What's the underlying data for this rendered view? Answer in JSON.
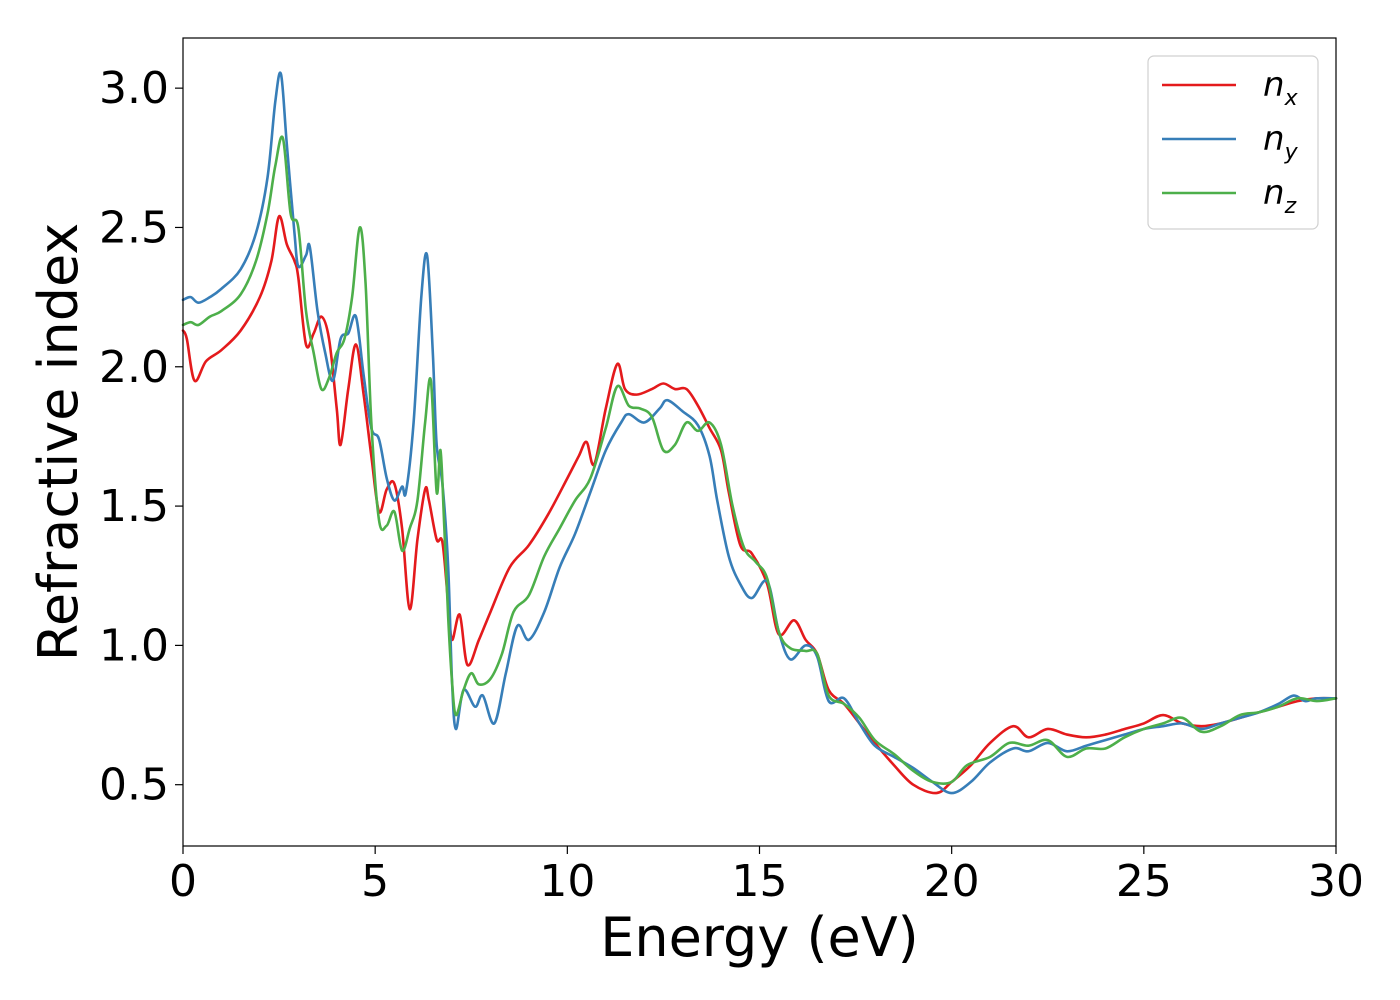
{
  "chart_data": {
    "type": "line",
    "title": "",
    "xlabel": "Energy (eV)",
    "ylabel": "Refractive index",
    "xlim": [
      0,
      30
    ],
    "ylim": [
      0.28,
      3.18
    ],
    "xticks": [
      0,
      5,
      10,
      15,
      20,
      25,
      30
    ],
    "xtick_labels": [
      "0",
      "5",
      "10",
      "15",
      "20",
      "25",
      "30"
    ],
    "yticks": [
      0.5,
      1.0,
      1.5,
      2.0,
      2.5,
      3.0
    ],
    "ytick_labels": [
      "0.5",
      "1.0",
      "1.5",
      "2.0",
      "2.5",
      "3.0"
    ],
    "grid": false,
    "legend_position": "top-right",
    "series": [
      {
        "name": "n_x",
        "label_main": "n",
        "label_sub": "x",
        "color": "#e41a1c",
        "points": [
          [
            0,
            2.13
          ],
          [
            0.1,
            2.1
          ],
          [
            0.3,
            1.95
          ],
          [
            0.6,
            2.02
          ],
          [
            1.0,
            2.06
          ],
          [
            1.5,
            2.13
          ],
          [
            2.0,
            2.25
          ],
          [
            2.3,
            2.38
          ],
          [
            2.5,
            2.54
          ],
          [
            2.7,
            2.44
          ],
          [
            2.9,
            2.38
          ],
          [
            3.0,
            2.32
          ],
          [
            3.2,
            2.08
          ],
          [
            3.4,
            2.12
          ],
          [
            3.6,
            2.18
          ],
          [
            3.8,
            2.1
          ],
          [
            4.0,
            1.85
          ],
          [
            4.1,
            1.72
          ],
          [
            4.3,
            1.92
          ],
          [
            4.5,
            2.08
          ],
          [
            4.7,
            1.9
          ],
          [
            4.9,
            1.68
          ],
          [
            5.1,
            1.48
          ],
          [
            5.3,
            1.56
          ],
          [
            5.5,
            1.58
          ],
          [
            5.7,
            1.42
          ],
          [
            5.9,
            1.13
          ],
          [
            6.1,
            1.38
          ],
          [
            6.3,
            1.56
          ],
          [
            6.4,
            1.52
          ],
          [
            6.6,
            1.38
          ],
          [
            6.75,
            1.37
          ],
          [
            6.9,
            1.15
          ],
          [
            7.0,
            1.02
          ],
          [
            7.2,
            1.11
          ],
          [
            7.4,
            0.93
          ],
          [
            7.7,
            1.02
          ],
          [
            8.0,
            1.12
          ],
          [
            8.5,
            1.28
          ],
          [
            9.0,
            1.36
          ],
          [
            9.5,
            1.47
          ],
          [
            10.0,
            1.6
          ],
          [
            10.3,
            1.68
          ],
          [
            10.5,
            1.73
          ],
          [
            10.7,
            1.65
          ],
          [
            11.0,
            1.85
          ],
          [
            11.3,
            2.01
          ],
          [
            11.5,
            1.92
          ],
          [
            11.8,
            1.9
          ],
          [
            12.2,
            1.92
          ],
          [
            12.5,
            1.94
          ],
          [
            12.8,
            1.92
          ],
          [
            13.1,
            1.92
          ],
          [
            13.4,
            1.86
          ],
          [
            13.7,
            1.78
          ],
          [
            14.0,
            1.7
          ],
          [
            14.2,
            1.55
          ],
          [
            14.5,
            1.36
          ],
          [
            14.8,
            1.33
          ],
          [
            15.2,
            1.22
          ],
          [
            15.5,
            1.04
          ],
          [
            15.9,
            1.09
          ],
          [
            16.2,
            1.02
          ],
          [
            16.5,
            0.97
          ],
          [
            16.8,
            0.84
          ],
          [
            17.2,
            0.79
          ],
          [
            17.6,
            0.72
          ],
          [
            18.0,
            0.65
          ],
          [
            18.5,
            0.57
          ],
          [
            19.0,
            0.5
          ],
          [
            19.6,
            0.47
          ],
          [
            20.0,
            0.51
          ],
          [
            20.5,
            0.57
          ],
          [
            21.0,
            0.65
          ],
          [
            21.6,
            0.71
          ],
          [
            22.0,
            0.67
          ],
          [
            22.5,
            0.7
          ],
          [
            23.0,
            0.68
          ],
          [
            23.5,
            0.67
          ],
          [
            24.0,
            0.68
          ],
          [
            24.5,
            0.7
          ],
          [
            25.0,
            0.72
          ],
          [
            25.5,
            0.75
          ],
          [
            26.0,
            0.72
          ],
          [
            26.5,
            0.71
          ],
          [
            27.0,
            0.72
          ],
          [
            27.5,
            0.74
          ],
          [
            28.0,
            0.76
          ],
          [
            28.5,
            0.78
          ],
          [
            29.0,
            0.8
          ],
          [
            29.5,
            0.81
          ],
          [
            30.0,
            0.81
          ]
        ]
      },
      {
        "name": "n_y",
        "label_main": "n",
        "label_sub": "y",
        "color": "#377eb8",
        "points": [
          [
            0,
            2.24
          ],
          [
            0.2,
            2.25
          ],
          [
            0.4,
            2.23
          ],
          [
            0.7,
            2.25
          ],
          [
            1.0,
            2.28
          ],
          [
            1.5,
            2.35
          ],
          [
            1.9,
            2.48
          ],
          [
            2.2,
            2.68
          ],
          [
            2.4,
            2.95
          ],
          [
            2.55,
            3.05
          ],
          [
            2.7,
            2.8
          ],
          [
            2.9,
            2.48
          ],
          [
            3.0,
            2.36
          ],
          [
            3.2,
            2.4
          ],
          [
            3.3,
            2.43
          ],
          [
            3.5,
            2.2
          ],
          [
            3.7,
            2.05
          ],
          [
            3.9,
            1.95
          ],
          [
            4.1,
            2.1
          ],
          [
            4.3,
            2.12
          ],
          [
            4.5,
            2.18
          ],
          [
            4.7,
            1.97
          ],
          [
            4.9,
            1.78
          ],
          [
            5.1,
            1.74
          ],
          [
            5.3,
            1.6
          ],
          [
            5.5,
            1.52
          ],
          [
            5.7,
            1.57
          ],
          [
            5.8,
            1.55
          ],
          [
            6.0,
            1.8
          ],
          [
            6.2,
            2.25
          ],
          [
            6.35,
            2.4
          ],
          [
            6.5,
            2.05
          ],
          [
            6.6,
            1.72
          ],
          [
            6.75,
            1.58
          ],
          [
            6.9,
            1.28
          ],
          [
            7.0,
            0.87
          ],
          [
            7.1,
            0.7
          ],
          [
            7.3,
            0.84
          ],
          [
            7.6,
            0.78
          ],
          [
            7.8,
            0.82
          ],
          [
            8.1,
            0.72
          ],
          [
            8.4,
            0.9
          ],
          [
            8.7,
            1.07
          ],
          [
            9.0,
            1.02
          ],
          [
            9.4,
            1.12
          ],
          [
            9.8,
            1.28
          ],
          [
            10.2,
            1.4
          ],
          [
            10.6,
            1.55
          ],
          [
            11.0,
            1.7
          ],
          [
            11.4,
            1.8
          ],
          [
            11.6,
            1.83
          ],
          [
            12.0,
            1.8
          ],
          [
            12.4,
            1.85
          ],
          [
            12.6,
            1.88
          ],
          [
            13.0,
            1.84
          ],
          [
            13.4,
            1.79
          ],
          [
            13.7,
            1.68
          ],
          [
            13.9,
            1.52
          ],
          [
            14.2,
            1.32
          ],
          [
            14.5,
            1.22
          ],
          [
            14.8,
            1.17
          ],
          [
            15.2,
            1.23
          ],
          [
            15.5,
            1.05
          ],
          [
            15.8,
            0.95
          ],
          [
            16.2,
            1.0
          ],
          [
            16.5,
            0.96
          ],
          [
            16.8,
            0.8
          ],
          [
            17.2,
            0.81
          ],
          [
            17.6,
            0.72
          ],
          [
            18.0,
            0.64
          ],
          [
            18.5,
            0.6
          ],
          [
            19.0,
            0.56
          ],
          [
            19.5,
            0.51
          ],
          [
            20.0,
            0.47
          ],
          [
            20.5,
            0.51
          ],
          [
            21.0,
            0.58
          ],
          [
            21.6,
            0.63
          ],
          [
            22.0,
            0.62
          ],
          [
            22.5,
            0.65
          ],
          [
            23.0,
            0.62
          ],
          [
            23.5,
            0.64
          ],
          [
            24.0,
            0.66
          ],
          [
            24.5,
            0.68
          ],
          [
            25.0,
            0.7
          ],
          [
            25.5,
            0.71
          ],
          [
            26.0,
            0.72
          ],
          [
            26.5,
            0.7
          ],
          [
            27.0,
            0.72
          ],
          [
            27.5,
            0.74
          ],
          [
            28.0,
            0.76
          ],
          [
            28.5,
            0.79
          ],
          [
            28.9,
            0.82
          ],
          [
            29.2,
            0.8
          ],
          [
            29.5,
            0.81
          ],
          [
            30.0,
            0.81
          ]
        ]
      },
      {
        "name": "n_z",
        "label_main": "n",
        "label_sub": "z",
        "color": "#4daf4a",
        "points": [
          [
            0,
            2.15
          ],
          [
            0.2,
            2.16
          ],
          [
            0.4,
            2.15
          ],
          [
            0.7,
            2.18
          ],
          [
            1.0,
            2.2
          ],
          [
            1.5,
            2.26
          ],
          [
            1.9,
            2.38
          ],
          [
            2.2,
            2.55
          ],
          [
            2.4,
            2.72
          ],
          [
            2.6,
            2.82
          ],
          [
            2.8,
            2.55
          ],
          [
            3.0,
            2.5
          ],
          [
            3.2,
            2.2
          ],
          [
            3.4,
            2.05
          ],
          [
            3.6,
            1.92
          ],
          [
            3.8,
            1.96
          ],
          [
            4.0,
            2.05
          ],
          [
            4.2,
            2.1
          ],
          [
            4.4,
            2.25
          ],
          [
            4.6,
            2.5
          ],
          [
            4.75,
            2.3
          ],
          [
            4.9,
            1.8
          ],
          [
            5.1,
            1.45
          ],
          [
            5.3,
            1.43
          ],
          [
            5.5,
            1.48
          ],
          [
            5.7,
            1.34
          ],
          [
            5.9,
            1.42
          ],
          [
            6.1,
            1.52
          ],
          [
            6.3,
            1.8
          ],
          [
            6.45,
            1.95
          ],
          [
            6.6,
            1.55
          ],
          [
            6.7,
            1.7
          ],
          [
            6.8,
            1.42
          ],
          [
            6.9,
            1.1
          ],
          [
            7.0,
            0.87
          ],
          [
            7.1,
            0.75
          ],
          [
            7.3,
            0.84
          ],
          [
            7.5,
            0.9
          ],
          [
            7.7,
            0.86
          ],
          [
            8.0,
            0.88
          ],
          [
            8.3,
            0.97
          ],
          [
            8.6,
            1.12
          ],
          [
            9.0,
            1.18
          ],
          [
            9.4,
            1.32
          ],
          [
            9.8,
            1.42
          ],
          [
            10.2,
            1.52
          ],
          [
            10.6,
            1.6
          ],
          [
            11.0,
            1.78
          ],
          [
            11.3,
            1.93
          ],
          [
            11.6,
            1.86
          ],
          [
            11.9,
            1.85
          ],
          [
            12.2,
            1.82
          ],
          [
            12.5,
            1.7
          ],
          [
            12.8,
            1.72
          ],
          [
            13.1,
            1.8
          ],
          [
            13.4,
            1.77
          ],
          [
            13.7,
            1.8
          ],
          [
            14.0,
            1.72
          ],
          [
            14.3,
            1.5
          ],
          [
            14.6,
            1.35
          ],
          [
            14.9,
            1.3
          ],
          [
            15.2,
            1.24
          ],
          [
            15.5,
            1.05
          ],
          [
            15.8,
            0.99
          ],
          [
            16.2,
            0.98
          ],
          [
            16.5,
            0.97
          ],
          [
            16.8,
            0.82
          ],
          [
            17.2,
            0.79
          ],
          [
            17.6,
            0.74
          ],
          [
            18.0,
            0.66
          ],
          [
            18.5,
            0.61
          ],
          [
            19.0,
            0.55
          ],
          [
            19.5,
            0.51
          ],
          [
            20.0,
            0.51
          ],
          [
            20.4,
            0.57
          ],
          [
            21.0,
            0.6
          ],
          [
            21.5,
            0.65
          ],
          [
            22.0,
            0.64
          ],
          [
            22.5,
            0.66
          ],
          [
            23.0,
            0.6
          ],
          [
            23.5,
            0.63
          ],
          [
            24.0,
            0.63
          ],
          [
            24.5,
            0.67
          ],
          [
            25.0,
            0.7
          ],
          [
            25.5,
            0.72
          ],
          [
            26.0,
            0.74
          ],
          [
            26.5,
            0.69
          ],
          [
            27.0,
            0.71
          ],
          [
            27.5,
            0.75
          ],
          [
            28.0,
            0.76
          ],
          [
            28.5,
            0.78
          ],
          [
            29.0,
            0.81
          ],
          [
            29.5,
            0.8
          ],
          [
            30.0,
            0.81
          ]
        ]
      }
    ]
  }
}
